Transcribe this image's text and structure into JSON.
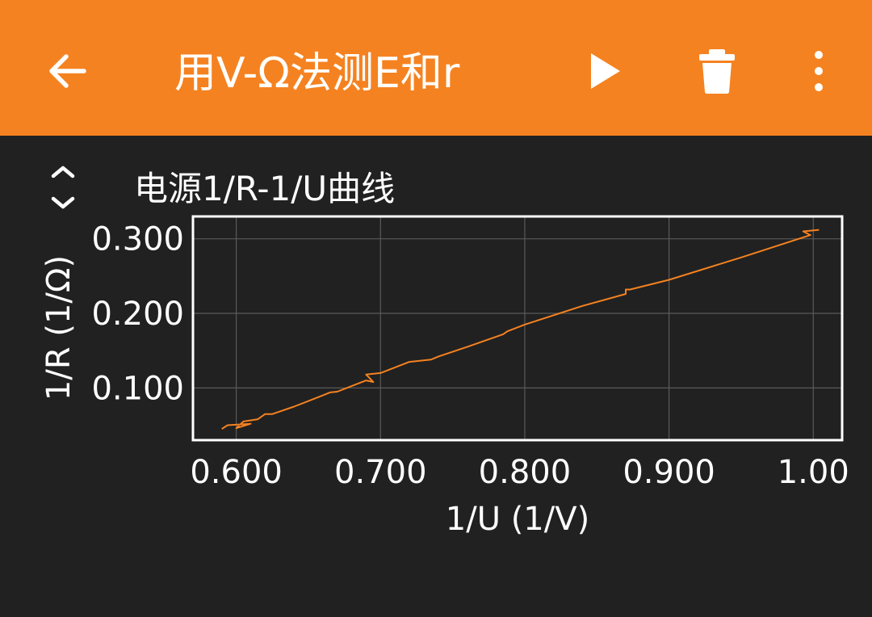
{
  "app_bar": {
    "title": "用V-Ω法测E和r",
    "background": "#f58220",
    "back_icon": "arrow-left-icon",
    "play_icon": "play-icon",
    "delete_icon": "trash-icon",
    "menu_icon": "more-vert-icon"
  },
  "plot": {
    "title": "电源1/R-1/U曲线",
    "expand_icon": "expand-collapse-icon"
  },
  "chart_data": {
    "type": "line",
    "title": "电源1/R-1/U曲线",
    "xlabel": "1/U (1/V)",
    "ylabel": "1/R (1/Ω)",
    "xlim": [
      0.57,
      1.02
    ],
    "ylim": [
      0.03,
      0.33
    ],
    "xticks": [
      0.6,
      0.7,
      0.8,
      0.9,
      1.0
    ],
    "xtick_labels": [
      "0.600",
      "0.700",
      "0.800",
      "0.900",
      "1.00"
    ],
    "yticks": [
      0.1,
      0.2,
      0.3
    ],
    "ytick_labels": [
      "0.100",
      "0.200",
      "0.300"
    ],
    "grid": true,
    "line_color": "#f58220",
    "series": [
      {
        "x": [
          0.59,
          0.594,
          0.61,
          0.6,
          0.605,
          0.615,
          0.62,
          0.625,
          0.64,
          0.66,
          0.665,
          0.67,
          0.69,
          0.695,
          0.69,
          0.7,
          0.72,
          0.735,
          0.74,
          0.76,
          0.785,
          0.788,
          0.8,
          0.84,
          0.87,
          0.87,
          0.873,
          0.9,
          0.95,
          0.998,
          0.993,
          1.004
        ],
        "y": [
          0.045,
          0.05,
          0.052,
          0.046,
          0.055,
          0.058,
          0.065,
          0.065,
          0.075,
          0.09,
          0.094,
          0.095,
          0.11,
          0.108,
          0.118,
          0.12,
          0.135,
          0.138,
          0.142,
          0.155,
          0.172,
          0.176,
          0.185,
          0.21,
          0.226,
          0.232,
          0.232,
          0.245,
          0.275,
          0.305,
          0.31,
          0.312
        ]
      }
    ]
  }
}
